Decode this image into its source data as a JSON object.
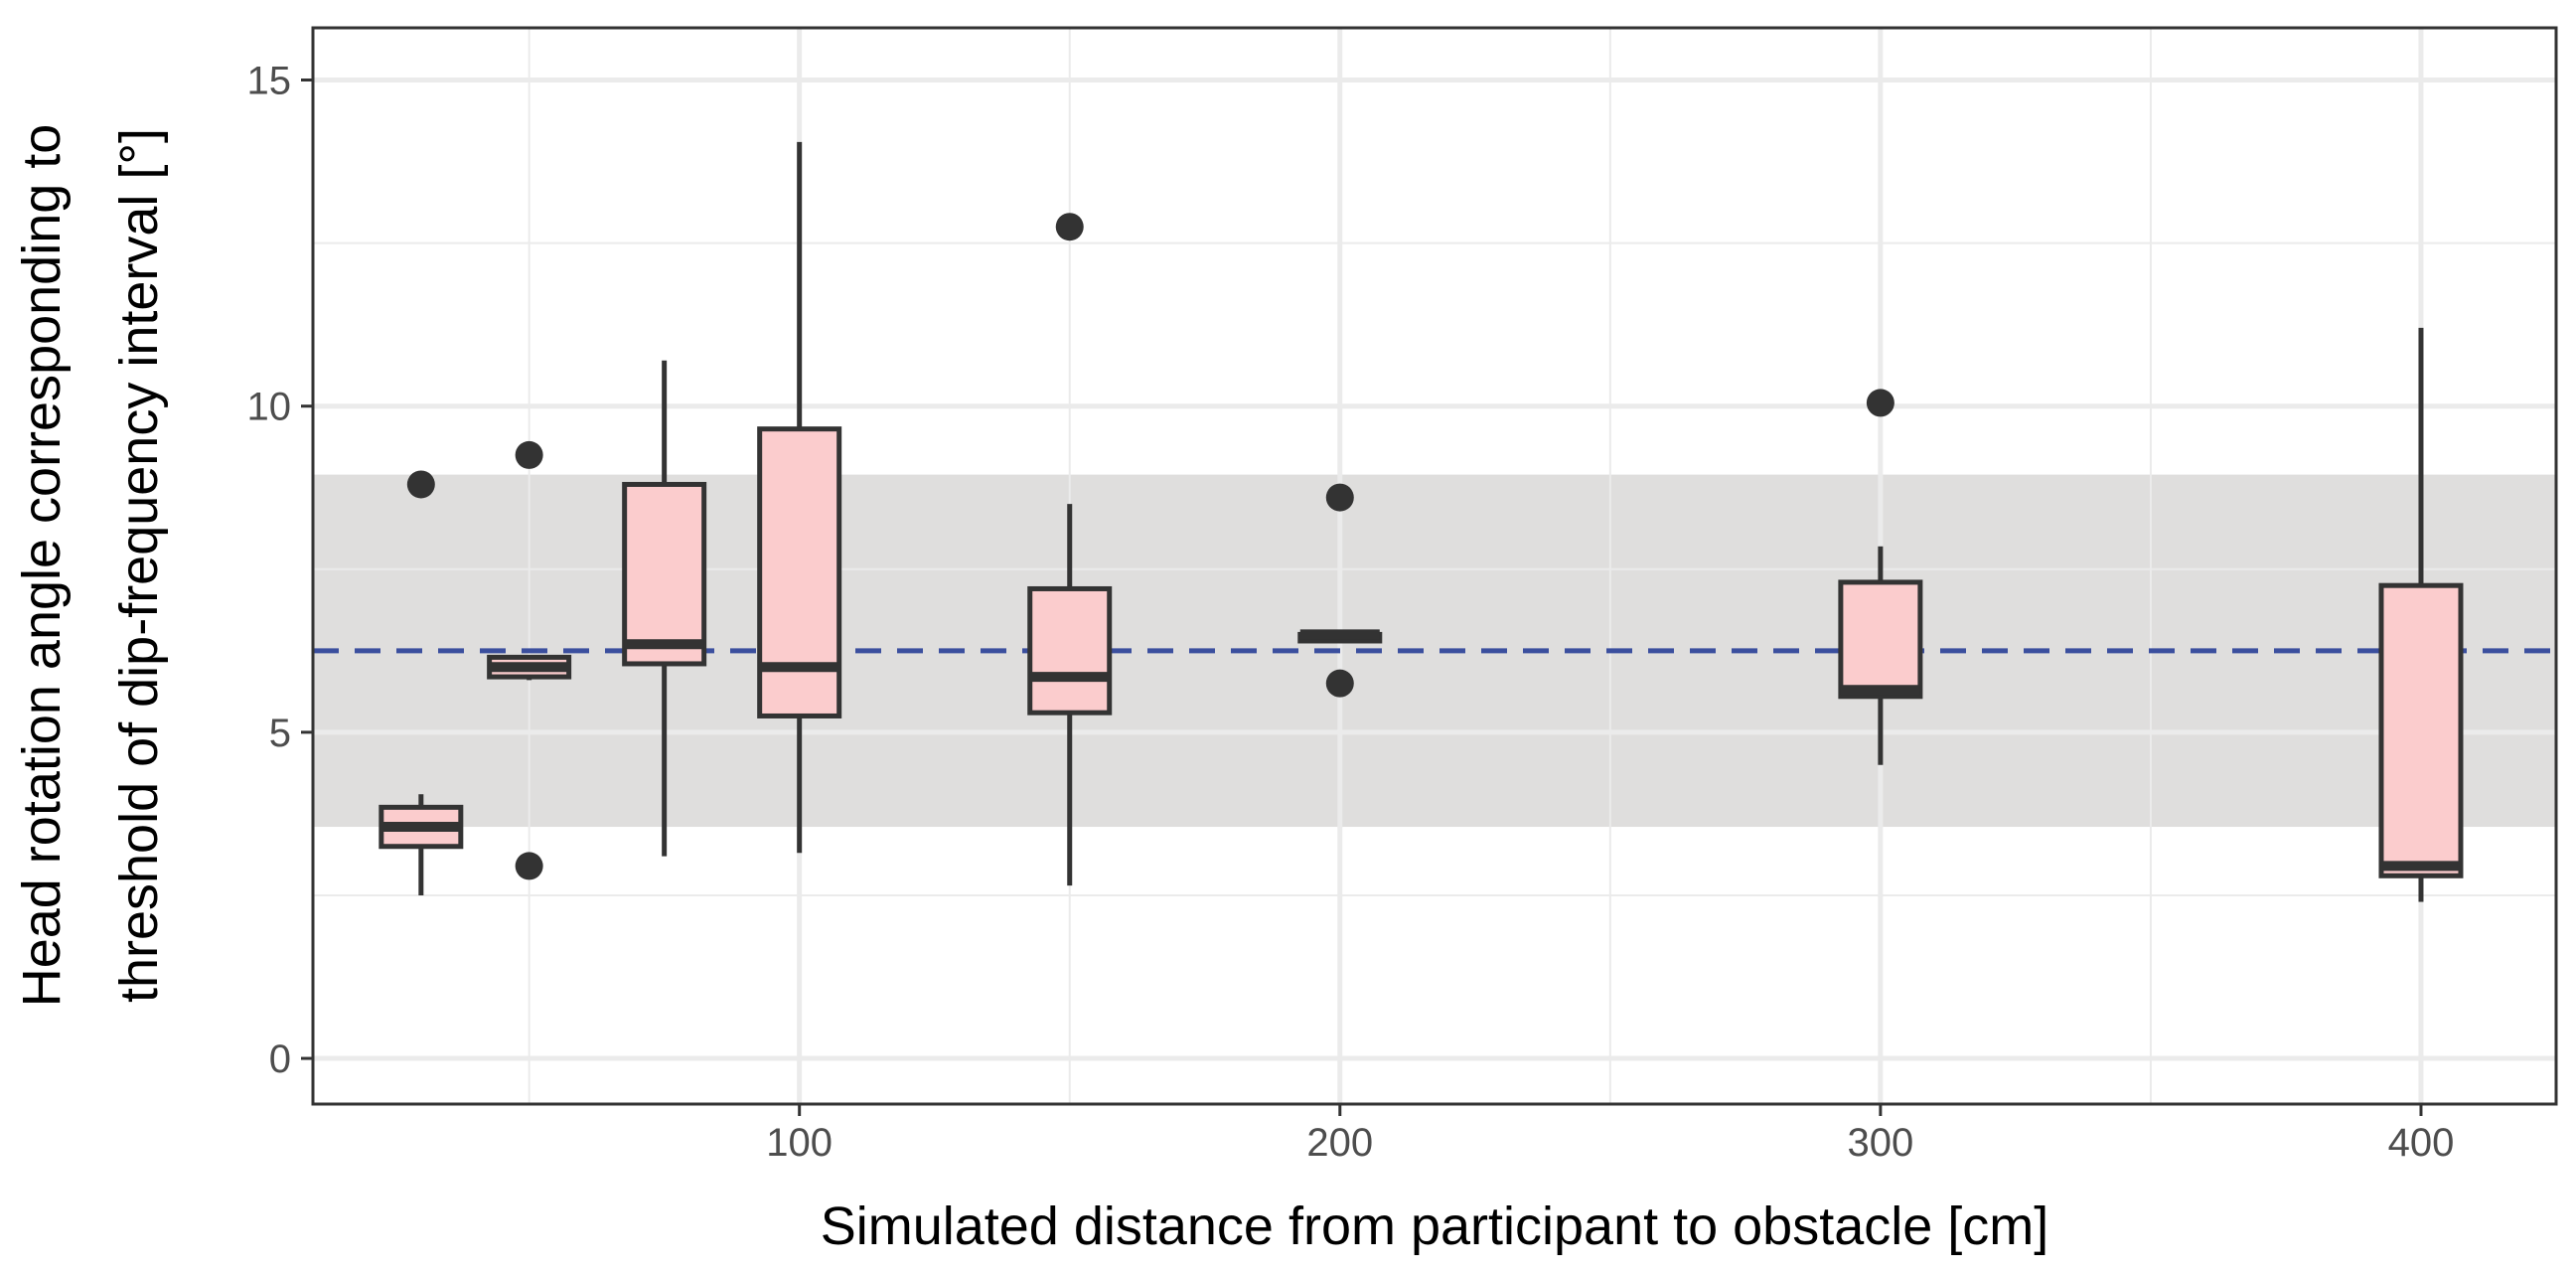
{
  "chart_data": {
    "type": "boxplot",
    "xlabel": "Simulated distance from participant to obstacle [cm]",
    "ylabel_lines": [
      "Head rotation angle corresponding to",
      "threshold of dip-frequency interval [°]"
    ],
    "xlim": [
      10,
      425
    ],
    "ylim": [
      -0.7,
      15.8
    ],
    "x_ticks": [
      100,
      200,
      300,
      400
    ],
    "x_tick_labels": [
      "100",
      "200",
      "300",
      "400"
    ],
    "y_ticks": [
      0,
      5,
      10,
      15
    ],
    "y_tick_labels": [
      "0",
      "5",
      "10",
      "15"
    ],
    "grid": true,
    "reference_band": {
      "ymin": 3.55,
      "ymax": 8.95,
      "color": "#dfdedd"
    },
    "reference_line": {
      "y": 6.25,
      "style": "dashed",
      "color": "#3b4f9e"
    },
    "box_fill": "#fbcccd",
    "box_stroke": "#333333",
    "boxes": [
      {
        "x": 30,
        "whisker_low": 2.5,
        "q1": 3.25,
        "median": 3.55,
        "q3": 3.85,
        "whisker_high": 4.05,
        "outliers": [
          8.8
        ]
      },
      {
        "x": 50,
        "whisker_low": 5.8,
        "q1": 5.85,
        "median": 6.0,
        "q3": 6.15,
        "whisker_high": 6.15,
        "outliers": [
          9.25,
          2.95
        ]
      },
      {
        "x": 75,
        "whisker_low": 3.1,
        "q1": 6.05,
        "median": 6.35,
        "q3": 8.8,
        "whisker_high": 10.7,
        "outliers": []
      },
      {
        "x": 100,
        "whisker_low": 3.15,
        "q1": 5.25,
        "median": 6.0,
        "q3": 9.65,
        "whisker_high": 14.05,
        "outliers": []
      },
      {
        "x": 150,
        "whisker_low": 2.65,
        "q1": 5.3,
        "median": 5.85,
        "q3": 7.2,
        "whisker_high": 8.5,
        "outliers": [
          12.75
        ]
      },
      {
        "x": 200,
        "whisker_low": 6.4,
        "q1": 6.4,
        "median": 6.5,
        "q3": 6.5,
        "whisker_high": 6.5,
        "outliers": [
          8.6,
          5.75
        ]
      },
      {
        "x": 300,
        "whisker_low": 4.5,
        "q1": 5.55,
        "median": 5.65,
        "q3": 7.3,
        "whisker_high": 7.85,
        "outliers": [
          10.05
        ]
      },
      {
        "x": 400,
        "whisker_low": 2.4,
        "q1": 2.8,
        "median": 2.95,
        "q3": 7.25,
        "whisker_high": 11.2,
        "outliers": []
      }
    ]
  }
}
